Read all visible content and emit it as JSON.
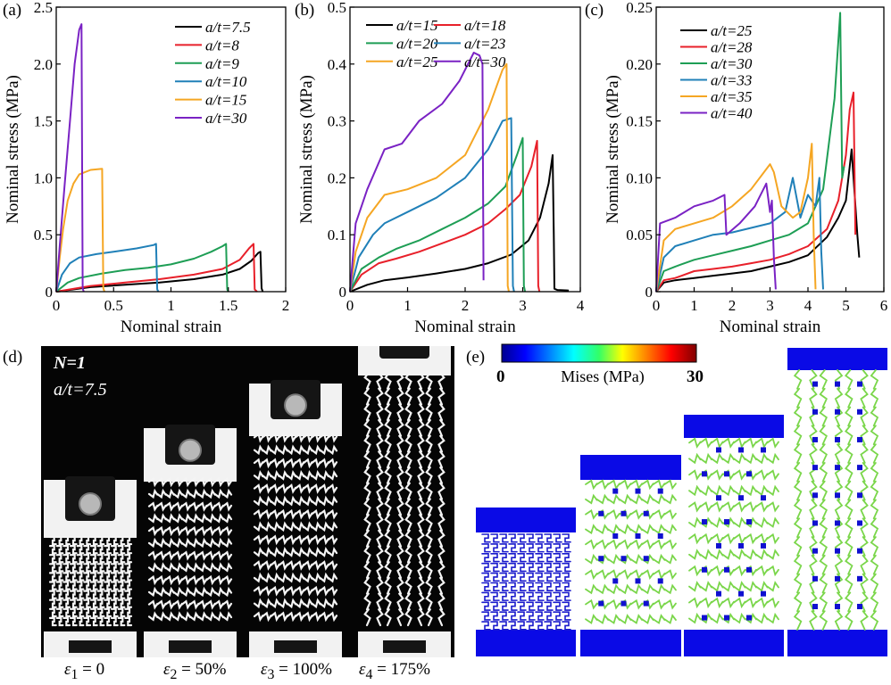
{
  "panels": {
    "a": {
      "label": "(a)"
    },
    "b": {
      "label": "(b)"
    },
    "c": {
      "label": "(c)"
    },
    "d": {
      "label": "(d)"
    },
    "e": {
      "label": "(e)"
    }
  },
  "colors": {
    "black": "#000000",
    "red": "#e8202a",
    "green": "#1e9e55",
    "blue": "#2080b8",
    "orange": "#f5a623",
    "purple": "#7a22c4",
    "fea_frame": "#0a0ae6"
  },
  "chart_data": [
    {
      "id": "a",
      "type": "line",
      "xlabel": "Nominal strain",
      "ylabel": "Nominal stress (MPa)",
      "xlim": [
        0,
        2
      ],
      "ylim": [
        0,
        2.5
      ],
      "xticks": [
        "0",
        "0.5",
        "1",
        "1.5",
        "2"
      ],
      "yticks": [
        "0",
        "0.5",
        "1.0",
        "1.5",
        "2.0",
        "2.5"
      ],
      "legend_position": "top-right",
      "series": [
        {
          "name": "a/t=7.5",
          "color": "#000000",
          "x": [
            0,
            0.3,
            0.6,
            0.9,
            1.2,
            1.45,
            1.6,
            1.7,
            1.76,
            1.78,
            1.79,
            1.8
          ],
          "y": [
            0,
            0.04,
            0.06,
            0.08,
            0.11,
            0.15,
            0.2,
            0.27,
            0.34,
            0.35,
            0.03,
            0
          ]
        },
        {
          "name": "a/t=8",
          "color": "#e8202a",
          "x": [
            0,
            0.3,
            0.6,
            0.9,
            1.2,
            1.45,
            1.6,
            1.68,
            1.72,
            1.73,
            1.75
          ],
          "y": [
            0,
            0.05,
            0.08,
            0.11,
            0.15,
            0.2,
            0.28,
            0.38,
            0.42,
            0.02,
            0
          ]
        },
        {
          "name": "a/t=9",
          "color": "#1e9e55",
          "x": [
            0,
            0.1,
            0.2,
            0.4,
            0.6,
            0.8,
            1.0,
            1.2,
            1.35,
            1.45,
            1.48,
            1.49,
            1.5
          ],
          "y": [
            0,
            0.08,
            0.12,
            0.16,
            0.19,
            0.21,
            0.24,
            0.29,
            0.35,
            0.4,
            0.42,
            0.02,
            0
          ]
        },
        {
          "name": "a/t=10",
          "color": "#2080b8",
          "x": [
            0,
            0.05,
            0.12,
            0.2,
            0.35,
            0.5,
            0.7,
            0.85,
            0.87,
            0.88,
            0.89
          ],
          "y": [
            0,
            0.15,
            0.25,
            0.3,
            0.33,
            0.35,
            0.38,
            0.41,
            0.42,
            0.02,
            0
          ]
        },
        {
          "name": "a/t=15",
          "color": "#f5a623",
          "x": [
            0,
            0.03,
            0.06,
            0.1,
            0.15,
            0.2,
            0.3,
            0.4,
            0.41,
            0.42
          ],
          "y": [
            0,
            0.3,
            0.55,
            0.8,
            0.95,
            1.03,
            1.07,
            1.08,
            0.03,
            0
          ]
        },
        {
          "name": "a/t=30",
          "color": "#7a22c4",
          "x": [
            0,
            0.03,
            0.07,
            0.12,
            0.16,
            0.2,
            0.22,
            0.23,
            0.24
          ],
          "y": [
            0,
            0.4,
            0.9,
            1.5,
            2.0,
            2.3,
            2.35,
            0.03,
            0
          ]
        }
      ]
    },
    {
      "id": "b",
      "type": "line",
      "xlabel": "Nominal strain",
      "ylabel": "Nominal stress (MPa)",
      "xlim": [
        0,
        4
      ],
      "ylim": [
        0,
        0.5
      ],
      "xticks": [
        "0",
        "1",
        "2",
        "3",
        "4"
      ],
      "yticks": [
        "0",
        "0.1",
        "0.2",
        "0.3",
        "0.4",
        "0.5"
      ],
      "legend_position": "top",
      "series": [
        {
          "name": "a/t=15",
          "color": "#000000",
          "x": [
            0,
            0.3,
            0.6,
            1.0,
            1.5,
            2.0,
            2.4,
            2.8,
            3.1,
            3.3,
            3.45,
            3.52,
            3.54,
            3.55,
            3.6,
            3.8
          ],
          "y": [
            0,
            0.012,
            0.02,
            0.025,
            0.032,
            0.04,
            0.05,
            0.065,
            0.09,
            0.13,
            0.19,
            0.24,
            0.1,
            0.005,
            0.003,
            0.002
          ]
        },
        {
          "name": "a/t=18",
          "color": "#e8202a",
          "x": [
            0,
            0.2,
            0.5,
            0.8,
            1.2,
            1.6,
            2.0,
            2.4,
            2.7,
            2.95,
            3.15,
            3.25,
            3.27,
            3.29
          ],
          "y": [
            0,
            0.03,
            0.05,
            0.058,
            0.07,
            0.085,
            0.1,
            0.12,
            0.145,
            0.17,
            0.22,
            0.265,
            0.01,
            0
          ]
        },
        {
          "name": "a/t=20",
          "color": "#1e9e55",
          "x": [
            0,
            0.2,
            0.5,
            0.8,
            1.2,
            1.6,
            2.0,
            2.4,
            2.7,
            2.9,
            3.0,
            3.02,
            3.04
          ],
          "y": [
            0,
            0.04,
            0.06,
            0.075,
            0.09,
            0.11,
            0.13,
            0.155,
            0.185,
            0.24,
            0.27,
            0.01,
            0
          ]
        },
        {
          "name": "a/t=23",
          "color": "#2080b8",
          "x": [
            0,
            0.15,
            0.4,
            0.6,
            1.0,
            1.5,
            2.0,
            2.4,
            2.65,
            2.8,
            2.83,
            2.85
          ],
          "y": [
            0,
            0.06,
            0.1,
            0.12,
            0.14,
            0.165,
            0.2,
            0.25,
            0.3,
            0.305,
            0.01,
            0
          ]
        },
        {
          "name": "a/t=25",
          "color": "#f5a623",
          "x": [
            0,
            0.1,
            0.3,
            0.6,
            1.0,
            1.5,
            2.0,
            2.4,
            2.65,
            2.72,
            2.74,
            2.76
          ],
          "y": [
            0,
            0.07,
            0.13,
            0.17,
            0.18,
            0.2,
            0.24,
            0.32,
            0.39,
            0.4,
            0.01,
            0
          ]
        },
        {
          "name": "a/t=30",
          "color": "#7a22c4",
          "x": [
            0,
            0.1,
            0.3,
            0.6,
            0.9,
            1.2,
            1.6,
            1.9,
            2.15,
            2.25,
            2.3,
            2.32
          ],
          "y": [
            0,
            0.12,
            0.18,
            0.25,
            0.26,
            0.3,
            0.33,
            0.37,
            0.42,
            0.415,
            0.4,
            0.02
          ]
        }
      ]
    },
    {
      "id": "c",
      "type": "line",
      "xlabel": "Nominal strain",
      "ylabel": "Nominal stress (MPa)",
      "xlim": [
        0,
        6
      ],
      "ylim": [
        0,
        0.25
      ],
      "xticks": [
        "0",
        "1",
        "2",
        "3",
        "4",
        "5",
        "6"
      ],
      "yticks": [
        "0",
        "0.05",
        "0.10",
        "0.15",
        "0.20",
        "0.25"
      ],
      "legend_position": "top-left",
      "series": [
        {
          "name": "a/t=25",
          "color": "#000000",
          "x": [
            0,
            0.2,
            0.5,
            1.0,
            1.5,
            2.0,
            2.5,
            3.0,
            3.5,
            4.0,
            4.5,
            4.8,
            5.0,
            5.15,
            5.3,
            5.35
          ],
          "y": [
            0,
            0.008,
            0.01,
            0.012,
            0.014,
            0.016,
            0.018,
            0.022,
            0.026,
            0.032,
            0.048,
            0.065,
            0.08,
            0.125,
            0.05,
            0.03
          ]
        },
        {
          "name": "a/t=28",
          "color": "#e8202a",
          "x": [
            0,
            0.2,
            0.5,
            1.0,
            1.5,
            2.0,
            2.5,
            3.0,
            3.5,
            4.0,
            4.5,
            4.8,
            5.0,
            5.1,
            5.2,
            5.25
          ],
          "y": [
            0,
            0.01,
            0.012,
            0.018,
            0.02,
            0.022,
            0.025,
            0.028,
            0.033,
            0.04,
            0.055,
            0.08,
            0.12,
            0.16,
            0.175,
            0.05
          ]
        },
        {
          "name": "a/t=30",
          "color": "#1e9e55",
          "x": [
            0,
            0.2,
            0.5,
            1.0,
            1.5,
            2.0,
            2.5,
            3.0,
            3.5,
            4.0,
            4.4,
            4.7,
            4.85,
            4.9,
            4.95
          ],
          "y": [
            0,
            0.018,
            0.022,
            0.028,
            0.032,
            0.036,
            0.04,
            0.045,
            0.05,
            0.06,
            0.09,
            0.17,
            0.245,
            0.1,
            0.11
          ]
        },
        {
          "name": "a/t=33",
          "color": "#2080b8",
          "x": [
            0,
            0.2,
            0.5,
            1.0,
            1.5,
            2.0,
            2.5,
            3.0,
            3.4,
            3.6,
            3.8,
            4.0,
            4.2,
            4.3,
            4.35,
            4.4
          ],
          "y": [
            0,
            0.03,
            0.04,
            0.045,
            0.05,
            0.052,
            0.056,
            0.06,
            0.07,
            0.1,
            0.065,
            0.085,
            0.075,
            0.1,
            0.035,
            0.002
          ]
        },
        {
          "name": "a/t=35",
          "color": "#f5a623",
          "x": [
            0,
            0.2,
            0.5,
            1.0,
            1.5,
            2.0,
            2.5,
            3.0,
            3.1,
            3.3,
            3.6,
            3.8,
            4.0,
            4.1,
            4.15,
            4.2
          ],
          "y": [
            0,
            0.045,
            0.055,
            0.06,
            0.065,
            0.075,
            0.09,
            0.112,
            0.105,
            0.075,
            0.065,
            0.07,
            0.1,
            0.13,
            0.05,
            0.002
          ]
        },
        {
          "name": "a/t=40",
          "color": "#7a22c4",
          "x": [
            0,
            0.1,
            0.5,
            1.0,
            1.5,
            1.8,
            1.85,
            2.2,
            2.6,
            2.9,
            3.0,
            3.05,
            3.1,
            3.15
          ],
          "y": [
            0,
            0.06,
            0.065,
            0.075,
            0.08,
            0.085,
            0.05,
            0.06,
            0.075,
            0.095,
            0.07,
            0.08,
            0.03,
            0.002
          ]
        }
      ]
    }
  ],
  "photo": {
    "n_label": "N=1",
    "at_label": "a/t=7.5",
    "strains": [
      {
        "sym": "ε",
        "sub": "1",
        "val": " = 0"
      },
      {
        "sym": "ε",
        "sub": "2",
        "val": " = 50%"
      },
      {
        "sym": "ε",
        "sub": "3",
        "val": " = 100%"
      },
      {
        "sym": "ε",
        "sub": "4",
        "val": " = 175%"
      }
    ]
  },
  "fea": {
    "colorbar_min": "0",
    "colorbar_max": "30",
    "colorbar_label": "Mises (MPa)"
  }
}
